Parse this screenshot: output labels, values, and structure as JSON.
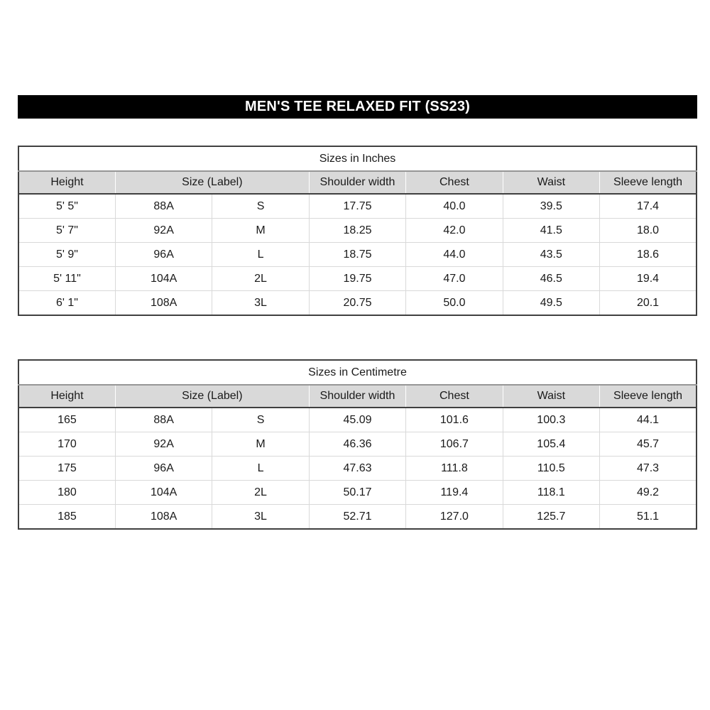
{
  "banner": {
    "title": "MEN'S TEE RELAXED FIT (SS23)",
    "bg_color": "#000000",
    "text_color": "#ffffff"
  },
  "colors": {
    "header_row_bg": "#d9d9d9",
    "outer_border": "#404040",
    "light_grid": "#d9d9d9",
    "title_separator": "#969696",
    "text": "#1a1a1a"
  },
  "tables": [
    {
      "title": "Sizes in Inches",
      "columns": [
        "Height",
        "Size (Label)",
        "Shoulder width",
        "Chest",
        "Waist",
        "Sleeve length"
      ],
      "rows": [
        [
          "5' 5\"",
          "88A",
          "S",
          "17.75",
          "40.0",
          "39.5",
          "17.4"
        ],
        [
          "5' 7\"",
          "92A",
          "M",
          "18.25",
          "42.0",
          "41.5",
          "18.0"
        ],
        [
          "5' 9\"",
          "96A",
          "L",
          "18.75",
          "44.0",
          "43.5",
          "18.6"
        ],
        [
          "5' 11\"",
          "104A",
          "2L",
          "19.75",
          "47.0",
          "46.5",
          "19.4"
        ],
        [
          "6' 1\"",
          "108A",
          "3L",
          "20.75",
          "50.0",
          "49.5",
          "20.1"
        ]
      ]
    },
    {
      "title": "Sizes in Centimetre",
      "columns": [
        "Height",
        "Size (Label)",
        "Shoulder width",
        "Chest",
        "Waist",
        "Sleeve length"
      ],
      "rows": [
        [
          "165",
          "88A",
          "S",
          "45.09",
          "101.6",
          "100.3",
          "44.1"
        ],
        [
          "170",
          "92A",
          "M",
          "46.36",
          "106.7",
          "105.4",
          "45.7"
        ],
        [
          "175",
          "96A",
          "L",
          "47.63",
          "111.8",
          "110.5",
          "47.3"
        ],
        [
          "180",
          "104A",
          "2L",
          "50.17",
          "119.4",
          "118.1",
          "49.2"
        ],
        [
          "185",
          "108A",
          "3L",
          "52.71",
          "127.0",
          "125.7",
          "51.1"
        ]
      ]
    }
  ]
}
